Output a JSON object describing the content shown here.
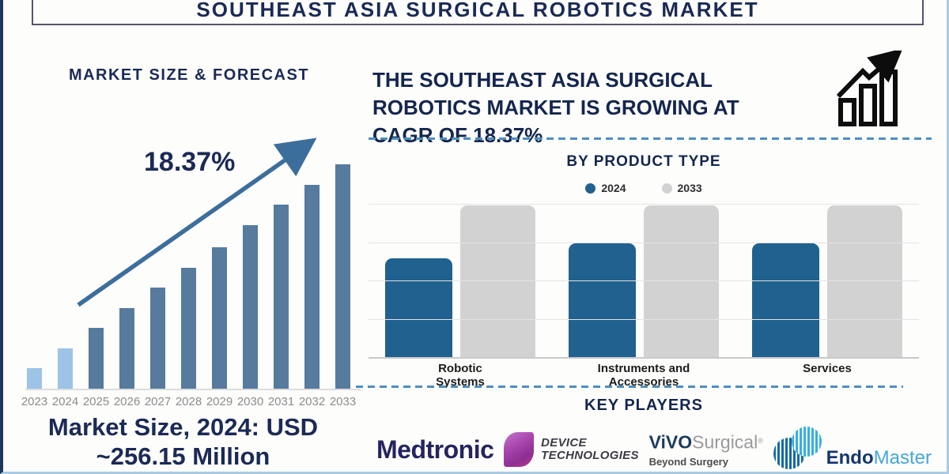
{
  "title": "SOUTHEAST ASIA SURGICAL ROBOTICS MARKET",
  "left_panel": {
    "heading": "MARKET SIZE & FORECAST",
    "growth_label": "18.37%",
    "market_size_lines": [
      "Market Size, 2024: USD",
      "~256.15 Million"
    ]
  },
  "right_panel": {
    "headline_lines": [
      "THE SOUTHEAST ASIA SURGICAL",
      "ROBOTICS MARKET IS GROWING AT",
      "CAGR OF 18.37%"
    ],
    "product_section_heading": "BY PRODUCT TYPE",
    "key_players_heading": "KEY PLAYERS",
    "players": [
      {
        "name": "Medtronic",
        "wordmark": "Medtronic"
      },
      {
        "name": "Device Technologies",
        "line1": "DEVICE",
        "line2": "TECHNOLOGIES"
      },
      {
        "name": "Vivo Surgical",
        "brand_bold": "ViVO",
        "brand_light": "Surgical",
        "registered_mark": "®",
        "tagline": "Beyond Surgery"
      },
      {
        "name": "EndoMaster",
        "brand_bold": "Endo",
        "brand_light": "Master"
      }
    ]
  },
  "colors": {
    "navy_text": "#1B2A55",
    "left_bar_light": "#9DC3E6",
    "left_bar_dark": "#567B9D",
    "trend_arrow_blue": "#3C6E9C",
    "bar_2024_blue": "#20618F",
    "bar_2033_gray": "#D2D2D2",
    "dashed_separator": "#4D8FBF"
  },
  "chart_data": [
    {
      "type": "bar",
      "title": "MARKET SIZE & FORECAST",
      "categories": [
        "2023",
        "2024",
        "2025",
        "2026",
        "2027",
        "2028",
        "2029",
        "2030",
        "2031",
        "2032",
        "2033"
      ],
      "values_relative": [
        9,
        18,
        27,
        36,
        45,
        54,
        63,
        73,
        82,
        91,
        100
      ],
      "value_note": "y-axis unlabeled; bar heights relative, 2033 = 100",
      "bar_colors": [
        "#9DC3E6",
        "#9DC3E6",
        "#567B9D",
        "#567B9D",
        "#567B9D",
        "#567B9D",
        "#567B9D",
        "#567B9D",
        "#567B9D",
        "#567B9D",
        "#567B9D"
      ],
      "annotations": [
        "18.37%",
        "Market Size, 2024: USD ~256.15 Million"
      ],
      "grid": false,
      "legend_position": "none"
    },
    {
      "type": "bar",
      "title": "BY PRODUCT TYPE",
      "categories": [
        "Robotic Systems",
        "Instruments and Accessories",
        "Services"
      ],
      "categories_lines": [
        [
          "Robotic",
          "Systems"
        ],
        [
          "Instruments and",
          "Accessories"
        ],
        [
          "Services"
        ]
      ],
      "series": [
        {
          "name": "2024",
          "color": "#20618F",
          "values": [
            65,
            75,
            75
          ]
        },
        {
          "name": "2033",
          "color": "#D2D2D2",
          "values": [
            100,
            100,
            100
          ]
        }
      ],
      "value_note": "y-axis unlabeled; bar heights relative, 2033 = 100",
      "grid": true,
      "legend_position": "top"
    }
  ]
}
